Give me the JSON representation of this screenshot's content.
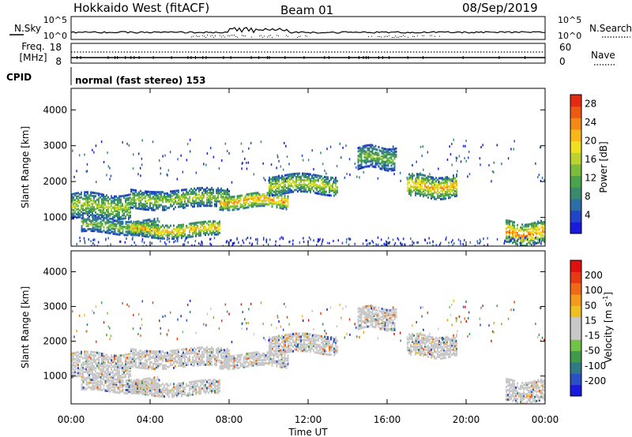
{
  "header": {
    "title": "Hokkaido West (fitACF)",
    "beam": "Beam 01",
    "date": "08/Sep/2019"
  },
  "top_panels": {
    "nsky_label": "N.Sky",
    "nsearch_label": "N.Search",
    "noise_ticks": [
      "10^5",
      "10^0"
    ],
    "freq_label_line1": "Freq.",
    "freq_label_line2": "[MHz]",
    "freq_ticks": [
      "18",
      "8"
    ],
    "nave_label": "Nave",
    "nave_ticks": [
      "60",
      "0"
    ],
    "cpid_label": "CPID",
    "cpid_text": "normal (fast stereo) 153"
  },
  "colors": {
    "power_scale": [
      "#1a1adc",
      "#2244c8",
      "#2e6ea6",
      "#3a8a6e",
      "#4aa24a",
      "#7cbc3c",
      "#bcd22e",
      "#f0e020",
      "#f8b818",
      "#f48a16",
      "#ee5a12",
      "#e42a10"
    ],
    "velocity_scale": [
      "#1a1adc",
      "#2b4fc4",
      "#2f7a84",
      "#3f9a4e",
      "#72c24a",
      "#c8c8c8",
      "#c8c8c8",
      "#f0c020",
      "#f49a1c",
      "#ee6a16",
      "#e83a12",
      "#e01010"
    ]
  },
  "chart_data": [
    {
      "type": "heatmap",
      "name": "power",
      "ylabel": "Slant Range [km]",
      "xlabel": "",
      "yticks": [
        "1000",
        "2000",
        "3000",
        "4000"
      ],
      "ylim": [
        200,
        4600
      ],
      "xlim_hours": [
        0,
        24
      ],
      "colorbar_label": "Power [dB]",
      "colorbar_ticks": [
        "4",
        "8",
        "12",
        "16",
        "20",
        "24",
        "28"
      ],
      "colorbar_range": [
        0,
        30
      ],
      "bands": [
        {
          "start_hour": 0.0,
          "end_hour": 3.0,
          "range_low_km": 1000,
          "range_high_km": 1700,
          "peak_db": 16
        },
        {
          "start_hour": 0.5,
          "end_hour": 4.5,
          "range_low_km": 600,
          "range_high_km": 1000,
          "peak_db": 14
        },
        {
          "start_hour": 3.0,
          "end_hour": 7.5,
          "range_low_km": 500,
          "range_high_km": 900,
          "peak_db": 22
        },
        {
          "start_hour": 3.0,
          "end_hour": 8.0,
          "range_low_km": 1300,
          "range_high_km": 1800,
          "peak_db": 16
        },
        {
          "start_hour": 7.5,
          "end_hour": 11.0,
          "range_low_km": 1300,
          "range_high_km": 1700,
          "peak_db": 24
        },
        {
          "start_hour": 10.0,
          "end_hour": 13.5,
          "range_low_km": 1700,
          "range_high_km": 2200,
          "peak_db": 18
        },
        {
          "start_hour": 14.5,
          "end_hour": 16.5,
          "range_low_km": 2400,
          "range_high_km": 3000,
          "peak_db": 14
        },
        {
          "start_hour": 17.0,
          "end_hour": 19.5,
          "range_low_km": 1600,
          "range_high_km": 2200,
          "peak_db": 22
        },
        {
          "start_hour": 22.0,
          "end_hour": 24.0,
          "range_low_km": 300,
          "range_high_km": 900,
          "peak_db": 24
        }
      ]
    },
    {
      "type": "heatmap",
      "name": "velocity",
      "ylabel": "Slant Range [km]",
      "xlabel": "Time UT",
      "yticks": [
        "1000",
        "2000",
        "3000",
        "4000"
      ],
      "ylim": [
        200,
        4600
      ],
      "xticks": [
        "00:00",
        "04:00",
        "08:00",
        "12:00",
        "16:00",
        "20:00",
        "00:00"
      ],
      "xlim_hours": [
        0,
        24
      ],
      "colorbar_label": "Velocity [m s",
      "colorbar_label_sup": "-1",
      "colorbar_label_end": "]",
      "colorbar_ticks": [
        "200",
        "100",
        "50",
        "15",
        "-15",
        "-50",
        "-100",
        "-200"
      ],
      "colorbar_range": [
        -250,
        250
      ]
    }
  ]
}
